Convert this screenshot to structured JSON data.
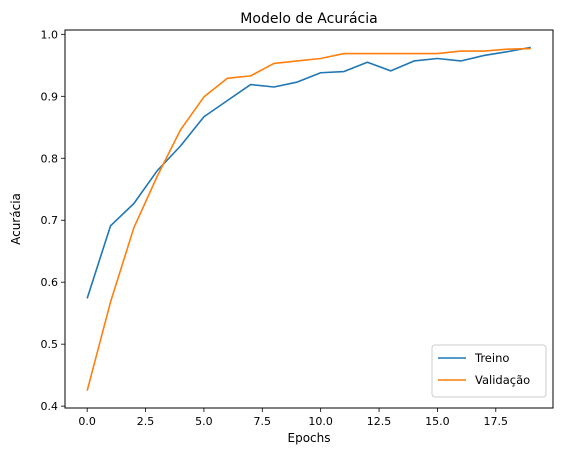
{
  "chart_data": {
    "type": "line",
    "title": "Modelo de Acurácia",
    "xlabel": "Epochs",
    "ylabel": "Acurácia",
    "xlim": [
      -0.95,
      19.95
    ],
    "ylim": [
      0.397,
      1.007
    ],
    "x_ticks": [
      0.0,
      2.5,
      5.0,
      7.5,
      10.0,
      12.5,
      15.0,
      17.5
    ],
    "x_tick_labels": [
      "0.0",
      "2.5",
      "5.0",
      "7.5",
      "10.0",
      "12.5",
      "15.0",
      "17.5"
    ],
    "y_ticks": [
      0.4,
      0.5,
      0.6,
      0.7,
      0.8,
      0.9,
      1.0
    ],
    "y_tick_labels": [
      "0.4",
      "0.5",
      "0.6",
      "0.7",
      "0.8",
      "0.9",
      "1.0"
    ],
    "grid": false,
    "legend_position": "lower-right",
    "x": [
      0,
      1,
      2,
      3,
      4,
      5,
      6,
      7,
      8,
      9,
      10,
      11,
      12,
      13,
      14,
      15,
      16,
      17,
      18,
      19
    ],
    "series": [
      {
        "name": "Treino",
        "color": "#1f77b4",
        "values": [
          0.574,
          0.691,
          0.727,
          0.78,
          0.82,
          0.867,
          0.893,
          0.919,
          0.915,
          0.923,
          0.938,
          0.94,
          0.955,
          0.941,
          0.957,
          0.961,
          0.957,
          0.966,
          0.972,
          0.979
        ]
      },
      {
        "name": "Validação",
        "color": "#ff7f0e",
        "values": [
          0.425,
          0.568,
          0.688,
          0.771,
          0.846,
          0.899,
          0.929,
          0.933,
          0.953,
          0.957,
          0.961,
          0.969,
          0.969,
          0.969,
          0.969,
          0.969,
          0.973,
          0.973,
          0.976,
          0.977
        ]
      }
    ]
  }
}
